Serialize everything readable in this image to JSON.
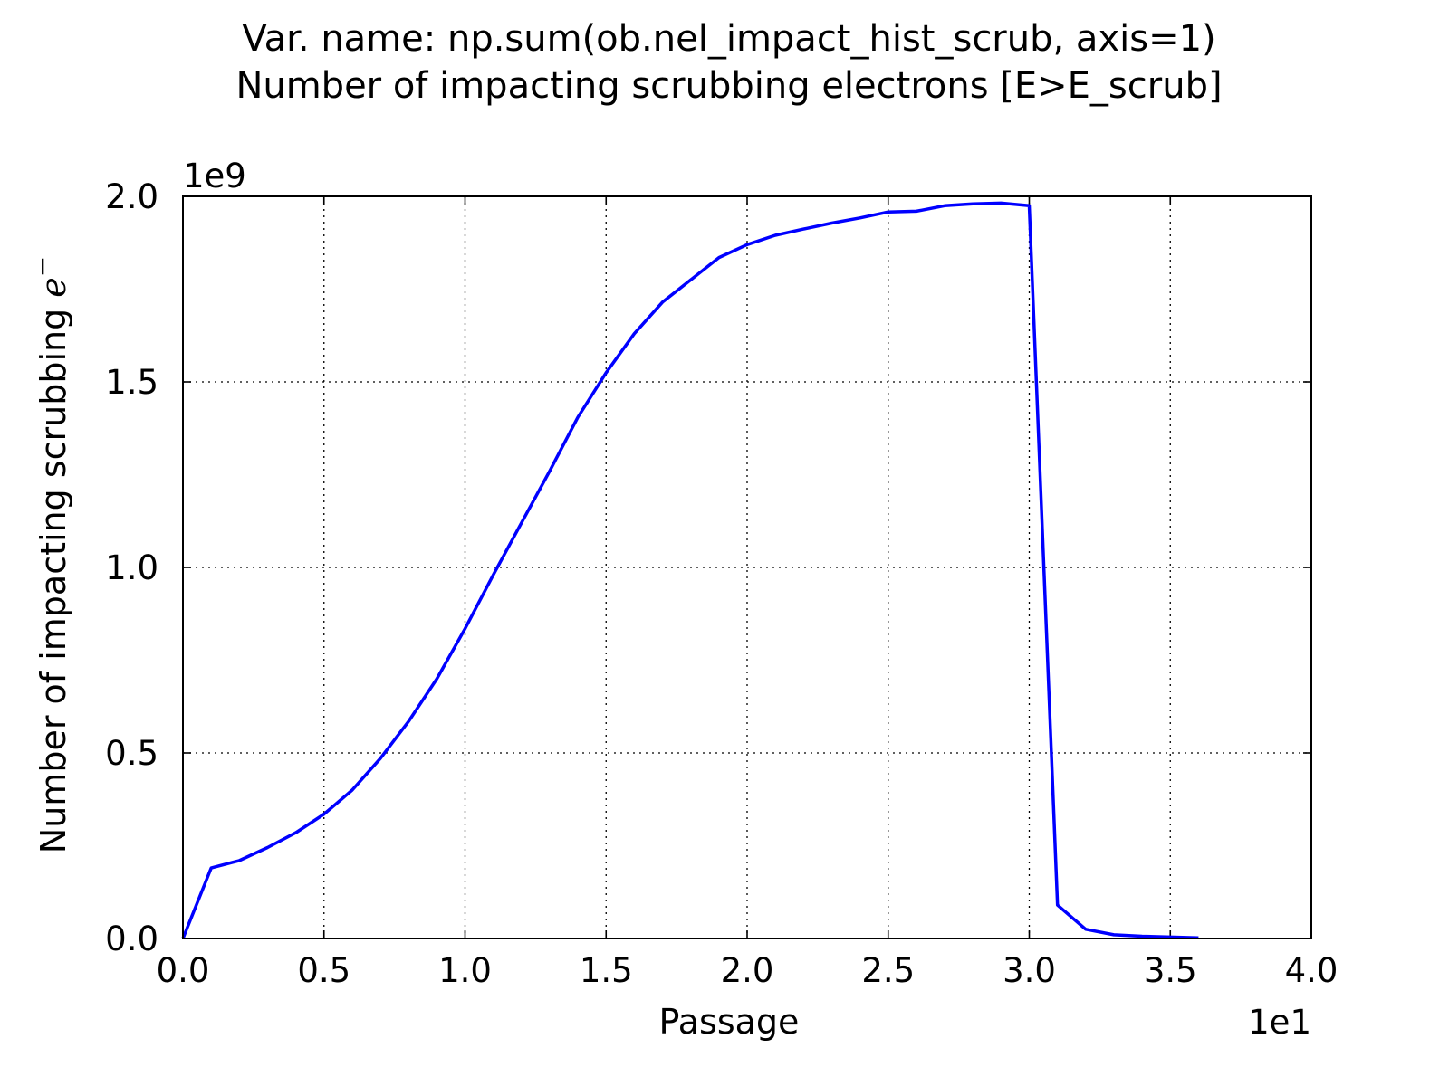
{
  "chart_data": {
    "type": "line",
    "title_lines": [
      "Var. name: np.sum(ob.nel_impact_hist_scrub, axis=1)",
      "Number of impacting scrubbing electrons [E>E_scrub]"
    ],
    "xlabel": "Passage",
    "ylabel": "Number of impacting scrubbing",
    "ylabel_symbol": "e",
    "ylabel_superscript": "−",
    "x_offset_label": "1e1",
    "y_offset_label": "1e9",
    "xlim": [
      0.0,
      4.0
    ],
    "ylim": [
      0.0,
      2.0
    ],
    "x_ticks": [
      0.0,
      0.5,
      1.0,
      1.5,
      2.0,
      2.5,
      3.0,
      3.5,
      4.0
    ],
    "y_ticks": [
      0.0,
      0.5,
      1.0,
      1.5,
      2.0
    ],
    "x_tick_labels": [
      "0.0",
      "0.5",
      "1.0",
      "1.5",
      "2.0",
      "2.5",
      "3.0",
      "3.5",
      "4.0"
    ],
    "y_tick_labels": [
      "0.0",
      "0.5",
      "1.0",
      "1.5",
      "2.0"
    ],
    "grid": true,
    "line_color": "#0000ff",
    "series": [
      {
        "x": [
          0.0,
          0.1,
          0.2,
          0.3,
          0.4,
          0.5,
          0.6,
          0.7,
          0.8,
          0.9,
          1.0,
          1.1,
          1.2,
          1.3,
          1.4,
          1.5,
          1.6,
          1.7,
          1.8,
          1.9,
          2.0,
          2.1,
          2.2,
          2.3,
          2.4,
          2.5,
          2.6,
          2.7,
          2.8,
          2.9,
          3.0,
          3.1,
          3.2,
          3.3,
          3.4,
          3.5,
          3.6
        ],
        "y": [
          0.0,
          0.19,
          0.21,
          0.245,
          0.285,
          0.335,
          0.4,
          0.485,
          0.585,
          0.7,
          0.835,
          0.98,
          1.12,
          1.26,
          1.405,
          1.525,
          1.63,
          1.715,
          1.775,
          1.835,
          1.87,
          1.895,
          1.912,
          1.928,
          1.942,
          1.958,
          1.96,
          1.975,
          1.98,
          1.982,
          1.975,
          0.09,
          0.025,
          0.01,
          0.006,
          0.004,
          0.002
        ]
      }
    ]
  }
}
